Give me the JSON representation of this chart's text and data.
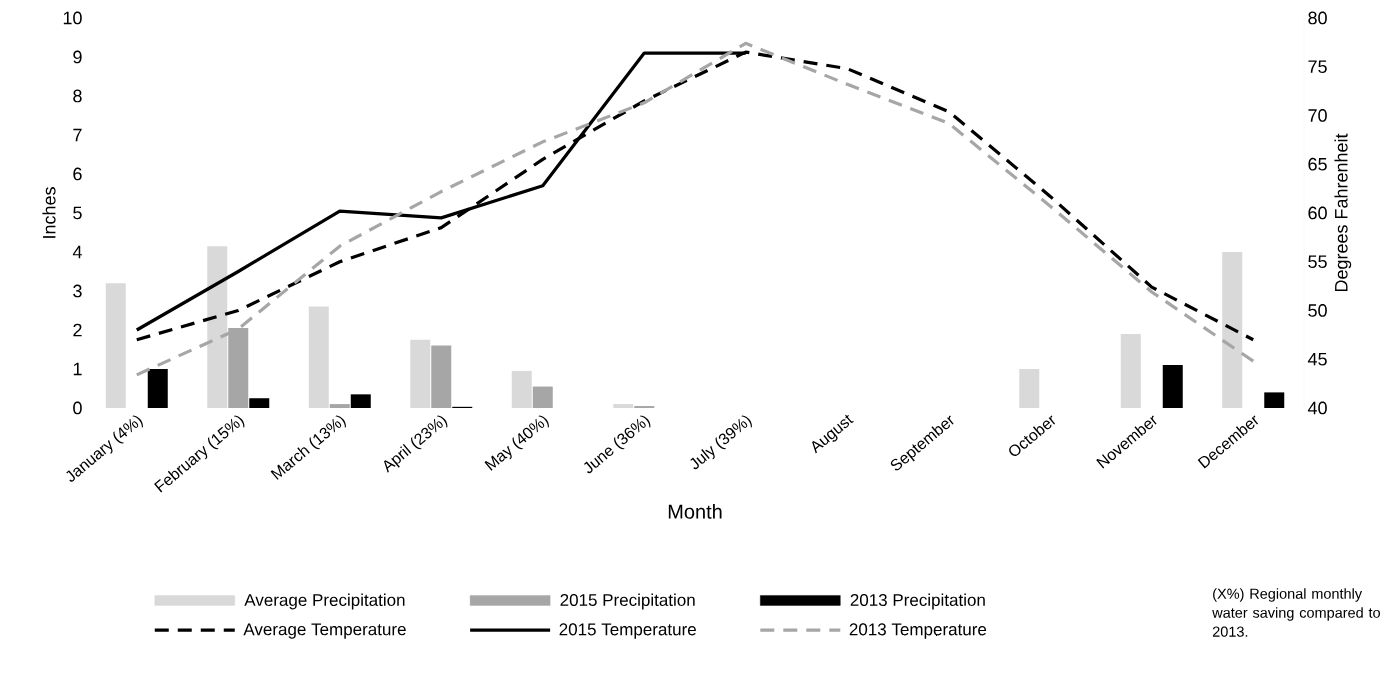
{
  "chart_data": {
    "type": "bar",
    "categories": [
      "January (4%)",
      "February (15%)",
      "March (13%)",
      "April (23%)",
      "May (40%)",
      "June (36%)",
      "July (39%)",
      "August",
      "September",
      "October",
      "November",
      "December"
    ],
    "xlabel": "Month",
    "ylabel": "Inches",
    "y2label": "Degrees Fahrenheit",
    "ylim": [
      0,
      10
    ],
    "yticks": [
      0,
      1,
      2,
      3,
      4,
      5,
      6,
      7,
      8,
      9,
      10
    ],
    "y2lim": [
      40,
      80
    ],
    "y2ticks": [
      40,
      45,
      50,
      55,
      60,
      65,
      70,
      75,
      80
    ],
    "legend": "bottom",
    "annotations": [
      "(X%) Regional  monthly water saving compared to 2013."
    ],
    "series": [
      {
        "name": "Average Precipitation",
        "color": "#d9d9d9",
        "values": [
          3.2,
          4.15,
          2.6,
          1.75,
          0.95,
          0.1,
          0,
          0,
          0,
          1.0,
          1.9,
          4.0
        ]
      },
      {
        "name": "2015 Precipitation",
        "color": "#a6a6a6",
        "values": [
          0,
          2.05,
          0.1,
          1.6,
          0.55,
          0.05,
          0,
          null,
          null,
          null,
          null,
          null
        ]
      },
      {
        "name": "2013 Precipitation",
        "color": "#000000",
        "values": [
          1.0,
          0.25,
          0.35,
          0.03,
          0,
          0,
          0,
          0,
          0,
          0,
          1.1,
          0.4
        ]
      },
      {
        "name": "Average Temperature",
        "type": "line",
        "axis": "y2",
        "line_style": "dashed",
        "color": "#000000",
        "values": [
          47,
          50,
          55,
          58.5,
          65.5,
          71.5,
          76.5,
          74.8,
          70.4,
          61.7,
          52.4,
          47
        ]
      },
      {
        "name": "2015 Temperature",
        "type": "line",
        "axis": "y2",
        "line_style": "solid",
        "color": "#000000",
        "values": [
          48,
          54,
          60.2,
          59.5,
          62.8,
          76.4,
          76.4,
          null,
          null,
          null,
          null,
          null
        ]
      },
      {
        "name": "2013 Temperature",
        "type": "line",
        "axis": "y2",
        "line_style": "dashed",
        "color": "#a6a6a6",
        "values": [
          43.4,
          48.1,
          56.6,
          62.2,
          67.3,
          71.3,
          77.4,
          73.2,
          69.2,
          60.7,
          51.9,
          44.8
        ]
      }
    ]
  }
}
